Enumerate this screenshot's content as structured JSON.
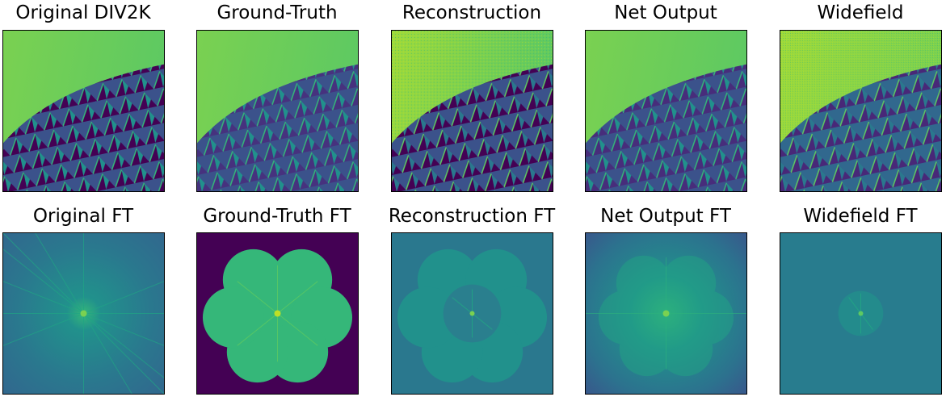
{
  "figure": {
    "row1_titles": [
      "Original DIV2K",
      "Ground-Truth",
      "Reconstruction",
      "Net Output",
      "Widefield"
    ],
    "row2_titles": [
      "Original FT",
      "Ground-Truth FT",
      "Reconstruction FT",
      "Net Output FT",
      "Widefield FT"
    ]
  },
  "colors": {
    "viridis_dark": "#440154",
    "viridis_blue": "#31688e",
    "viridis_teal": "#21918c",
    "viridis_green": "#5ec962",
    "viridis_yellow": "#fde725"
  }
}
